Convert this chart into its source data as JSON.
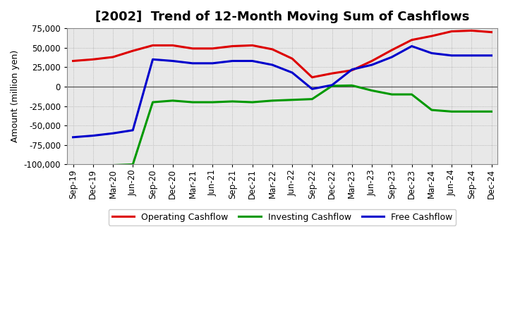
{
  "title": "[2002]  Trend of 12-Month Moving Sum of Cashflows",
  "ylabel": "Amount (million yen)",
  "ylim": [
    -100000,
    75000
  ],
  "yticks": [
    -100000,
    -75000,
    -50000,
    -25000,
    0,
    25000,
    50000,
    75000
  ],
  "x_labels": [
    "Sep-19",
    "Dec-19",
    "Mar-20",
    "Jun-20",
    "Sep-20",
    "Dec-20",
    "Mar-21",
    "Jun-21",
    "Sep-21",
    "Dec-21",
    "Mar-22",
    "Jun-22",
    "Sep-22",
    "Dec-22",
    "Mar-23",
    "Jun-23",
    "Sep-23",
    "Dec-23",
    "Mar-24",
    "Jun-24",
    "Sep-24",
    "Dec-24"
  ],
  "operating": [
    33000,
    35000,
    38000,
    46000,
    53000,
    53000,
    49000,
    49000,
    52000,
    53000,
    48000,
    36000,
    12000,
    17000,
    21000,
    33000,
    47000,
    60000,
    65000,
    71000,
    72000,
    70000
  ],
  "investing": [
    -101000,
    -101000,
    -101000,
    -100000,
    -20000,
    -18000,
    -20000,
    -20000,
    -19000,
    -20000,
    -18000,
    -17000,
    -16000,
    1000,
    1500,
    -5000,
    -10000,
    -10000,
    -30000,
    -32000,
    -32000,
    -32000
  ],
  "free": [
    -65000,
    -63000,
    -60000,
    -56000,
    35000,
    33000,
    30000,
    30000,
    33000,
    33000,
    28000,
    18000,
    -3000,
    2000,
    22000,
    28000,
    38000,
    52000,
    43000,
    40000,
    40000,
    40000
  ],
  "op_color": "#dd0000",
  "inv_color": "#009900",
  "free_color": "#0000cc",
  "plot_bg_color": "#e8e8e8",
  "fig_bg_color": "#ffffff",
  "grid_color": "#aaaaaa",
  "zero_line_color": "#555555",
  "line_width": 2.2,
  "title_fontsize": 13,
  "axis_fontsize": 8.5,
  "ylabel_fontsize": 9,
  "legend_fontsize": 9
}
